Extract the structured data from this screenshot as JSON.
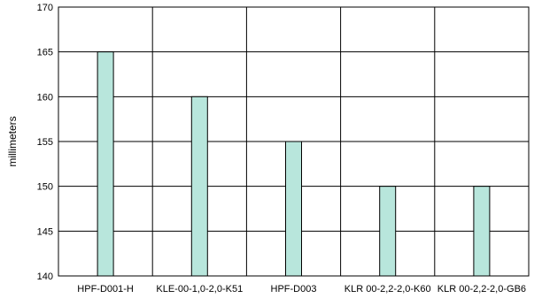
{
  "chart_data": {
    "type": "bar",
    "title": "",
    "xlabel": "",
    "ylabel": "millimeters",
    "categories": [
      "HPF-D001-H",
      "KLE-00-1,0-2,0-K51",
      "HPF-D003",
      "KLR 00-2,2-2,0-K60",
      "KLR 00-2,2-2,0-GB6"
    ],
    "values": [
      165,
      160,
      155,
      150,
      150
    ],
    "ylim": [
      140,
      170
    ],
    "yticks": [
      140,
      145,
      150,
      155,
      160,
      165,
      170
    ],
    "grid": {
      "vertical_separators": true,
      "horizontal": true
    },
    "legend": "none",
    "colors": {
      "bar_fill": "#b8e6dc",
      "bar_stroke": "#000000",
      "grid": "#000000",
      "background": "#ffffff"
    }
  }
}
